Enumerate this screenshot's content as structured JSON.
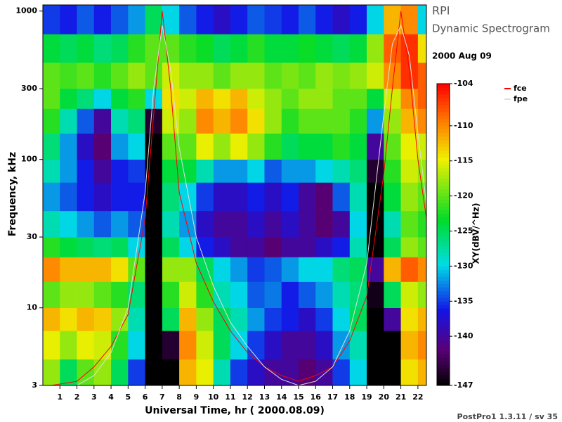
{
  "chart_data": {
    "type": "heatmap",
    "title": "RPI",
    "subtitle": "Dynamic Spectrogram",
    "date": "2000 Aug 09",
    "xlabel": "Universal Time, hr ( 2000.08.09)",
    "ylabel": "Frequency, kHz",
    "colorbar_label": "XY(dBV/^Hz)",
    "footer": "PostPro1 1.3.11 / sv 35",
    "xlim": [
      0,
      22.5
    ],
    "xticks": [
      1,
      2,
      3,
      4,
      5,
      6,
      7,
      8,
      9,
      10,
      11,
      12,
      13,
      14,
      15,
      16,
      17,
      18,
      19,
      20,
      21,
      22
    ],
    "ylim": [
      3,
      1100
    ],
    "yticks": [
      3,
      10,
      30,
      100,
      300,
      1000
    ],
    "log_y": true,
    "clim": [
      -147,
      -104
    ],
    "cticks": [
      -104,
      -110,
      -115,
      -120,
      -125,
      -130,
      -135,
      -140,
      -147
    ],
    "xbins": [
      0,
      1,
      2,
      3,
      4,
      5,
      6,
      7,
      8,
      9,
      10,
      11,
      12,
      13,
      14,
      15,
      16,
      17,
      18,
      19,
      20,
      21,
      22,
      22.5
    ],
    "ybins": [
      3,
      4.5,
      7,
      10,
      15,
      22,
      30,
      45,
      70,
      100,
      150,
      220,
      300,
      450,
      700,
      1100
    ],
    "values": [
      [
        -118,
        -125,
        -120,
        -118,
        -125,
        -135,
        -147,
        -147,
        -112,
        -115,
        -128,
        -135,
        -138,
        -140,
        -140,
        -142,
        -140,
        -135,
        -130,
        -147,
        -147,
        -114,
        -112
      ],
      [
        -115,
        -118,
        -115,
        -116,
        -122,
        -130,
        -147,
        -145,
        -110,
        -116,
        -125,
        -130,
        -135,
        -138,
        -140,
        -140,
        -138,
        -132,
        -128,
        -147,
        -147,
        -112,
        -110
      ],
      [
        -112,
        -114,
        -112,
        -113,
        -118,
        -128,
        -147,
        -125,
        -112,
        -118,
        -125,
        -128,
        -132,
        -135,
        -136,
        -138,
        -135,
        -130,
        -125,
        -147,
        -140,
        -114,
        -112
      ],
      [
        -120,
        -118,
        -118,
        -120,
        -122,
        -126,
        -147,
        -122,
        -116,
        -122,
        -128,
        -130,
        -134,
        -133,
        -136,
        -134,
        -132,
        -128,
        -126,
        -146,
        -125,
        -116,
        -118
      ],
      [
        -110,
        -112,
        -112,
        -112,
        -114,
        -120,
        -147,
        -118,
        -118,
        -125,
        -130,
        -132,
        -135,
        -134,
        -132,
        -130,
        -130,
        -126,
        -125,
        -140,
        -112,
        -108,
        -110
      ],
      [
        -122,
        -124,
        -125,
        -126,
        -125,
        -130,
        -147,
        -125,
        -130,
        -136,
        -138,
        -140,
        -140,
        -142,
        -140,
        -140,
        -138,
        -136,
        -128,
        -147,
        -125,
        -118,
        -120
      ],
      [
        -128,
        -130,
        -132,
        -134,
        -132,
        -134,
        -147,
        -128,
        -132,
        -138,
        -140,
        -140,
        -138,
        -140,
        -138,
        -140,
        -142,
        -140,
        -130,
        -147,
        -128,
        -120,
        -122
      ],
      [
        -132,
        -134,
        -136,
        -138,
        -136,
        -136,
        -147,
        -126,
        -130,
        -135,
        -138,
        -138,
        -136,
        -138,
        -136,
        -140,
        -142,
        -134,
        -128,
        -147,
        -124,
        -118,
        -120
      ],
      [
        -128,
        -132,
        -136,
        -140,
        -136,
        -135,
        -147,
        -124,
        -124,
        -128,
        -132,
        -132,
        -130,
        -134,
        -132,
        -132,
        -130,
        -128,
        -126,
        -145,
        -122,
        -116,
        -118
      ],
      [
        -126,
        -132,
        -138,
        -142,
        -132,
        -130,
        -147,
        -120,
        -120,
        -115,
        -118,
        -115,
        -118,
        -122,
        -125,
        -124,
        -124,
        -122,
        -124,
        -140,
        -120,
        -115,
        -116
      ],
      [
        -122,
        -128,
        -134,
        -140,
        -128,
        -126,
        -145,
        -116,
        -118,
        -110,
        -112,
        -110,
        -114,
        -118,
        -122,
        -120,
        -120,
        -120,
        -122,
        -132,
        -118,
        -112,
        -110
      ],
      [
        -120,
        -124,
        -126,
        -130,
        -124,
        -122,
        -130,
        -114,
        -116,
        -112,
        -114,
        -112,
        -116,
        -118,
        -120,
        -118,
        -118,
        -120,
        -120,
        -124,
        -116,
        -110,
        -108
      ],
      [
        -120,
        -121,
        -120,
        -122,
        -120,
        -118,
        -120,
        -116,
        -118,
        -118,
        -120,
        -118,
        -118,
        -120,
        -119,
        -120,
        -118,
        -119,
        -118,
        -116,
        -110,
        -106,
        -108
      ],
      [
        -124,
        -125,
        -124,
        -126,
        -125,
        -122,
        -120,
        -120,
        -122,
        -123,
        -125,
        -124,
        -122,
        -124,
        -124,
        -123,
        -124,
        -125,
        -124,
        -118,
        -108,
        -106,
        -114
      ],
      [
        -135,
        -136,
        -134,
        -136,
        -134,
        -132,
        -125,
        -130,
        -134,
        -136,
        -138,
        -136,
        -134,
        -135,
        -136,
        -134,
        -136,
        -138,
        -136,
        -130,
        -112,
        -110,
        -130
      ]
    ],
    "series": [
      {
        "name": "fce",
        "color": "#ff0000",
        "x": [
          0.5,
          2,
          3,
          4,
          5,
          6,
          6.5,
          7,
          7.5,
          8,
          9,
          10,
          11,
          12,
          13,
          14,
          15,
          16,
          17,
          18,
          19,
          20,
          20.5,
          21,
          21.5,
          22,
          22.5
        ],
        "values": [
          3,
          3.2,
          4,
          5.5,
          9,
          40,
          200,
          1000,
          300,
          60,
          20,
          11,
          7,
          5,
          4,
          3.5,
          3.2,
          3.5,
          4,
          6,
          12,
          80,
          300,
          1000,
          400,
          100,
          40
        ]
      },
      {
        "name": "fpe",
        "color": "#e0e0e0",
        "x": [
          0.5,
          2,
          3,
          4,
          5,
          6,
          6.5,
          7,
          7.5,
          8,
          9,
          10,
          11,
          12,
          13,
          14,
          15,
          16,
          17,
          18,
          19,
          20,
          20.5,
          21,
          21.5,
          22,
          22.5
        ],
        "values": [
          3,
          3,
          3.5,
          5,
          10,
          60,
          300,
          800,
          400,
          120,
          30,
          14,
          8,
          5.5,
          4,
          3.3,
          3,
          3.2,
          4,
          7,
          20,
          200,
          600,
          800,
          500,
          150,
          50
        ]
      }
    ]
  }
}
